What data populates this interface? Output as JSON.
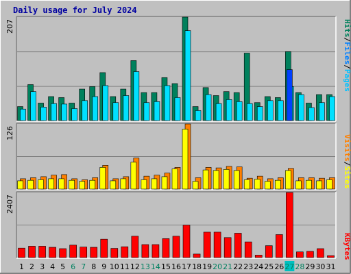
{
  "chart_data": {
    "type": "bar",
    "title": "Daily usage for July 2024",
    "categories": [
      "1",
      "2",
      "3",
      "4",
      "5",
      "6",
      "7",
      "8",
      "9",
      "10",
      "11",
      "12",
      "13",
      "14",
      "15",
      "16",
      "17",
      "18",
      "19",
      "20",
      "21",
      "22",
      "23",
      "24",
      "25",
      "26",
      "27",
      "28",
      "29",
      "30",
      "31"
    ],
    "weekend_days": [
      "6",
      "7",
      "13",
      "14",
      "20",
      "21",
      "27",
      "28"
    ],
    "highlight_day": "27",
    "panels": [
      {
        "name": "hits-files-pages",
        "ymax_label": "207",
        "ymax": 207,
        "legend": [
          "Pages",
          "/",
          "Files",
          "/",
          "Hits"
        ],
        "series": [
          {
            "name": "Hits",
            "color": "#00805c",
            "values": [
              28,
              72,
              35,
              48,
              46,
              35,
              63,
              68,
              96,
              48,
              63,
              120,
              56,
              56,
              86,
              74,
              207,
              28,
              66,
              50,
              58,
              56,
              135,
              36,
              48,
              46,
              138,
              56,
              35,
              52,
              52
            ]
          },
          {
            "name": "Files",
            "color": "#00e0ff",
            "values": [
              23,
              58,
              27,
              34,
              33,
              24,
              40,
              48,
              70,
              36,
              50,
              98,
              36,
              38,
              70,
              46,
              180,
              20,
              52,
              34,
              42,
              38,
              34,
              28,
              40,
              40,
              68,
              52,
              26,
              36,
              48
            ]
          },
          {
            "name": "Pages",
            "color": "#0040ff",
            "values": [
              0,
              0,
              0,
              0,
              0,
              0,
              0,
              0,
              0,
              0,
              0,
              0,
              0,
              0,
              0,
              0,
              0,
              0,
              0,
              0,
              0,
              0,
              0,
              0,
              0,
              0,
              102,
              0,
              0,
              0,
              0
            ]
          }
        ]
      },
      {
        "name": "visits-sites",
        "ymax_label": "126",
        "ymax": 126,
        "legend": [
          "Sites",
          "/",
          "Visits"
        ],
        "series": [
          {
            "name": "Visits",
            "color": "#ff8000",
            "values": [
              20,
              22,
              24,
              27,
              28,
              20,
              18,
              22,
              46,
              20,
              24,
              60,
              25,
              27,
              31,
              42,
              126,
              22,
              42,
              41,
              44,
              43,
              21,
              25,
              20,
              22,
              40,
              22,
              22,
              21,
              22
            ]
          },
          {
            "name": "Sites",
            "color": "#ffff00",
            "values": [
              16,
              17,
              18,
              20,
              20,
              17,
              15,
              17,
              42,
              16,
              20,
              52,
              18,
              20,
              24,
              39,
              116,
              15,
              37,
              36,
              38,
              36,
              18,
              19,
              15,
              17,
              36,
              16,
              17,
              16,
              18
            ]
          }
        ]
      },
      {
        "name": "kbytes",
        "ymax_label": "2407",
        "ymax": 2407,
        "legend": [
          "KBytes"
        ],
        "series": [
          {
            "name": "KBytes",
            "color": "#ff0000",
            "values": [
              350,
              420,
              420,
              380,
              330,
              460,
              390,
              380,
              680,
              340,
              400,
              790,
              480,
              480,
              700,
              790,
              1200,
              130,
              940,
              940,
              740,
              900,
              580,
              90,
              440,
              850,
              2407,
              210,
              230,
              330,
              70
            ]
          }
        ]
      }
    ]
  }
}
